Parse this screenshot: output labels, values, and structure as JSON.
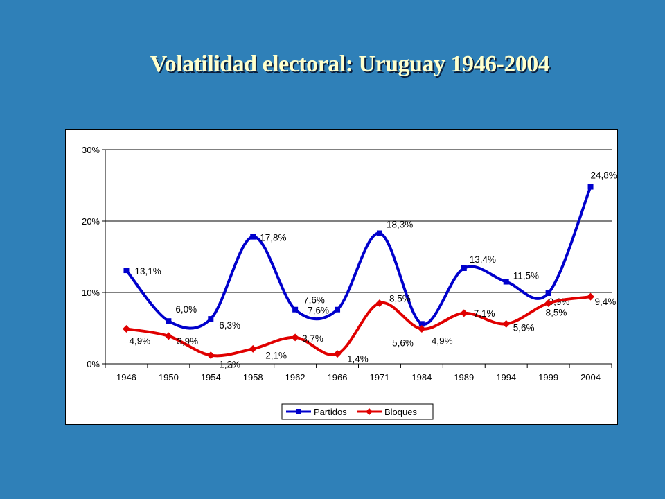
{
  "slide": {
    "title": "Volatilidad electoral: Uruguay 1946-2004"
  },
  "colors": {
    "background": "#2f80b8",
    "title": "#ffffcc",
    "partidos": "#0000cc",
    "bloques": "#e00000"
  },
  "chart_data": {
    "type": "line",
    "categories": [
      "1946",
      "1950",
      "1954",
      "1958",
      "1962",
      "1966",
      "1971",
      "1984",
      "1989",
      "1994",
      "1999",
      "2004"
    ],
    "series": [
      {
        "name": "Partidos",
        "values": [
          13.1,
          6.0,
          6.3,
          17.8,
          7.6,
          7.6,
          18.3,
          5.6,
          13.4,
          11.5,
          9.9,
          24.8
        ],
        "labels": [
          "13,1%",
          "6,0%",
          "6,3%",
          "17,8%",
          "7,6%",
          "7,6%",
          "18,3%",
          "5,6%",
          "13,4%",
          "11,5%",
          "9,9%",
          "24,8%"
        ]
      },
      {
        "name": "Bloques",
        "values": [
          4.9,
          3.9,
          1.2,
          2.1,
          3.7,
          1.4,
          8.5,
          4.9,
          7.1,
          5.6,
          8.5,
          9.4
        ],
        "labels": [
          "4,9%",
          "3,9%",
          "1,2%",
          "2,1%",
          "3,7%",
          "1,4%",
          "8,5%",
          "4,9%",
          "7,1%",
          "5,6%",
          "8,5%",
          "9,4%"
        ]
      }
    ],
    "yticks": [
      "0%",
      "10%",
      "20%",
      "30%"
    ],
    "ylim": [
      0,
      30
    ],
    "grid": "horizontal",
    "legend": "bottom",
    "smooth": true,
    "xlabel": "",
    "ylabel": ""
  }
}
